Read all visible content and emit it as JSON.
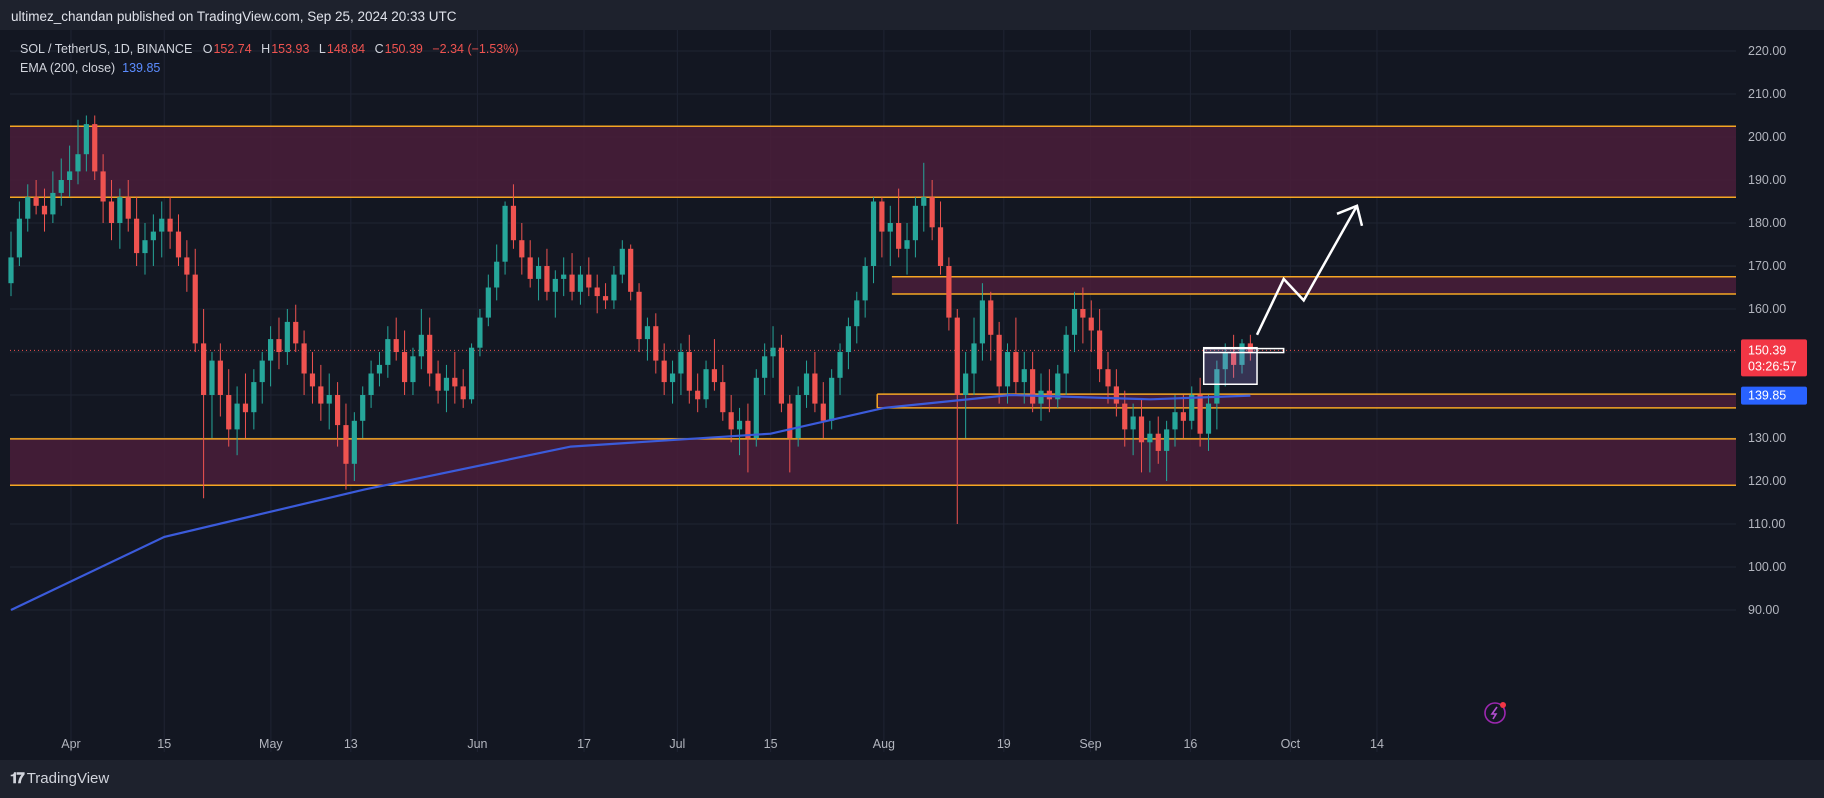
{
  "header": {
    "publisher_text": "ultimez_chandan published on TradingView.com, Sep 25, 2024 20:33 UTC"
  },
  "legend": {
    "symbol": "SOL / TetherUS, 1D, BINANCE",
    "open_key": "O",
    "open": "152.74",
    "high_key": "H",
    "high": "153.93",
    "low_key": "L",
    "low": "148.84",
    "close_key": "C",
    "close": "150.39",
    "change": "−2.34 (−1.53%)",
    "ema_label": "EMA (200, close)",
    "ema_value": "139.85"
  },
  "price_badge": {
    "price": "150.39",
    "countdown": "03:26:57"
  },
  "ema_badge": "139.85",
  "footer": {
    "brand": "TradingView",
    "logo_icon": "tradingview-logo-icon"
  },
  "colors": {
    "bg": "#131722",
    "up": "#26a69a",
    "down": "#ef5350",
    "zone_fill": "#4a1d3a",
    "zone_line": "#f5a623",
    "ema": "#3b5bdb",
    "grid": "#1f2433"
  },
  "chart_data": {
    "type": "candlestick",
    "title": "",
    "ylim": [
      88,
      228
    ],
    "y_ticks": [
      "220.00",
      "210.00",
      "200.00",
      "190.00",
      "180.00",
      "170.00",
      "160.00",
      "150.00",
      "140.00",
      "130.00",
      "120.00",
      "110.00",
      "100.00",
      "90.00"
    ],
    "x_ticks": [
      "Apr",
      "15",
      "May",
      "13",
      "Jun",
      "17",
      "Jul",
      "15",
      "Aug",
      "19",
      "Sep",
      "16",
      "Oct",
      "14"
    ],
    "candles_date_range": [
      "2024-03-23",
      "2024-09-25"
    ],
    "candles_ohlc": [
      [
        166,
        178,
        163,
        172
      ],
      [
        172,
        185,
        170,
        181
      ],
      [
        181,
        189,
        178,
        186
      ],
      [
        186,
        190,
        182,
        184
      ],
      [
        184,
        188,
        178,
        182
      ],
      [
        182,
        192,
        180,
        187
      ],
      [
        187,
        195,
        184,
        190
      ],
      [
        190,
        198,
        186,
        192
      ],
      [
        192,
        204,
        189,
        196
      ],
      [
        196,
        205,
        192,
        203
      ],
      [
        203,
        205,
        190,
        192
      ],
      [
        192,
        196,
        180,
        185
      ],
      [
        185,
        190,
        176,
        180
      ],
      [
        180,
        188,
        174,
        186
      ],
      [
        186,
        190,
        178,
        181
      ],
      [
        181,
        186,
        170,
        173
      ],
      [
        173,
        180,
        168,
        176
      ],
      [
        176,
        182,
        170,
        178
      ],
      [
        178,
        185,
        172,
        181
      ],
      [
        181,
        186,
        174,
        178
      ],
      [
        178,
        182,
        170,
        172
      ],
      [
        172,
        176,
        164,
        168
      ],
      [
        168,
        174,
        150,
        152
      ],
      [
        152,
        160,
        116,
        140
      ],
      [
        140,
        150,
        130,
        148
      ],
      [
        148,
        152,
        135,
        140
      ],
      [
        140,
        146,
        128,
        132
      ],
      [
        132,
        142,
        126,
        138
      ],
      [
        138,
        145,
        130,
        136
      ],
      [
        136,
        146,
        132,
        143
      ],
      [
        143,
        150,
        138,
        148
      ],
      [
        148,
        156,
        142,
        153
      ],
      [
        153,
        158,
        146,
        150
      ],
      [
        150,
        160,
        147,
        157
      ],
      [
        157,
        161,
        150,
        152
      ],
      [
        152,
        155,
        140,
        145
      ],
      [
        145,
        150,
        138,
        142
      ],
      [
        142,
        147,
        134,
        138
      ],
      [
        138,
        145,
        132,
        140
      ],
      [
        140,
        143,
        128,
        133
      ],
      [
        133,
        138,
        118,
        124
      ],
      [
        124,
        136,
        120,
        134
      ],
      [
        134,
        142,
        130,
        140
      ],
      [
        140,
        148,
        137,
        145
      ],
      [
        145,
        150,
        142,
        147
      ],
      [
        147,
        156,
        144,
        153
      ],
      [
        153,
        158,
        148,
        150
      ],
      [
        150,
        155,
        140,
        143
      ],
      [
        143,
        151,
        140,
        149
      ],
      [
        149,
        160,
        146,
        154
      ],
      [
        154,
        158,
        142,
        145
      ],
      [
        145,
        148,
        138,
        141
      ],
      [
        141,
        147,
        136,
        144
      ],
      [
        144,
        150,
        138,
        142
      ],
      [
        142,
        146,
        137,
        139
      ],
      [
        139,
        152,
        138,
        151
      ],
      [
        151,
        160,
        149,
        158
      ],
      [
        158,
        168,
        156,
        165
      ],
      [
        165,
        175,
        162,
        171
      ],
      [
        171,
        185,
        168,
        184
      ],
      [
        184,
        189,
        174,
        176
      ],
      [
        176,
        180,
        168,
        172
      ],
      [
        172,
        176,
        165,
        167
      ],
      [
        167,
        172,
        162,
        170
      ],
      [
        170,
        174,
        162,
        164
      ],
      [
        164,
        169,
        158,
        167
      ],
      [
        167,
        172,
        163,
        168
      ],
      [
        168,
        173,
        162,
        164
      ],
      [
        164,
        170,
        161,
        168
      ],
      [
        168,
        172,
        163,
        165
      ],
      [
        165,
        168,
        159,
        163
      ],
      [
        163,
        166,
        160,
        162
      ],
      [
        162,
        170,
        160,
        168
      ],
      [
        168,
        176,
        166,
        174
      ],
      [
        174,
        175,
        162,
        164
      ],
      [
        164,
        166,
        150,
        153
      ],
      [
        153,
        158,
        148,
        156
      ],
      [
        156,
        159,
        145,
        148
      ],
      [
        148,
        152,
        140,
        143
      ],
      [
        143,
        148,
        138,
        145
      ],
      [
        145,
        152,
        140,
        150
      ],
      [
        150,
        154,
        138,
        141
      ],
      [
        141,
        145,
        136,
        139
      ],
      [
        139,
        148,
        137,
        146
      ],
      [
        146,
        153,
        141,
        143
      ],
      [
        143,
        147,
        134,
        136
      ],
      [
        136,
        140,
        129,
        132
      ],
      [
        132,
        137,
        126,
        134
      ],
      [
        134,
        138,
        122,
        130
      ],
      [
        130,
        146,
        128,
        144
      ],
      [
        144,
        152,
        140,
        149
      ],
      [
        149,
        156,
        144,
        151
      ],
      [
        151,
        154,
        136,
        138
      ],
      [
        138,
        140,
        122,
        130
      ],
      [
        130,
        142,
        128,
        140
      ],
      [
        140,
        148,
        137,
        145
      ],
      [
        145,
        150,
        136,
        138
      ],
      [
        138,
        143,
        130,
        134
      ],
      [
        134,
        146,
        132,
        144
      ],
      [
        144,
        152,
        140,
        150
      ],
      [
        150,
        158,
        146,
        156
      ],
      [
        156,
        164,
        152,
        162
      ],
      [
        162,
        172,
        158,
        170
      ],
      [
        170,
        186,
        166,
        185
      ],
      [
        185,
        186,
        172,
        178
      ],
      [
        178,
        184,
        170,
        180
      ],
      [
        180,
        188,
        172,
        174
      ],
      [
        174,
        180,
        168,
        176
      ],
      [
        176,
        186,
        172,
        184
      ],
      [
        184,
        194,
        178,
        186
      ],
      [
        186,
        190,
        176,
        179
      ],
      [
        179,
        185,
        168,
        170
      ],
      [
        170,
        172,
        155,
        158
      ],
      [
        158,
        160,
        110,
        140
      ],
      [
        140,
        150,
        130,
        145
      ],
      [
        145,
        158,
        140,
        152
      ],
      [
        152,
        166,
        148,
        162
      ],
      [
        162,
        164,
        148,
        154
      ],
      [
        154,
        157,
        138,
        142
      ],
      [
        142,
        152,
        138,
        150
      ],
      [
        150,
        158,
        140,
        143
      ],
      [
        143,
        150,
        138,
        146
      ],
      [
        146,
        150,
        136,
        138
      ],
      [
        138,
        145,
        134,
        141
      ],
      [
        141,
        146,
        136,
        139
      ],
      [
        139,
        147,
        137,
        145
      ],
      [
        145,
        156,
        140,
        154
      ],
      [
        154,
        164,
        150,
        160
      ],
      [
        160,
        165,
        152,
        158
      ],
      [
        158,
        162,
        150,
        155
      ],
      [
        155,
        160,
        143,
        146
      ],
      [
        146,
        150,
        138,
        142
      ],
      [
        142,
        146,
        135,
        138
      ],
      [
        138,
        141,
        128,
        132
      ],
      [
        132,
        138,
        126,
        135
      ],
      [
        135,
        139,
        122,
        129
      ],
      [
        129,
        134,
        122,
        131
      ],
      [
        131,
        135,
        124,
        127
      ],
      [
        127,
        134,
        120,
        132
      ],
      [
        132,
        140,
        128,
        136
      ],
      [
        136,
        140,
        130,
        134
      ],
      [
        134,
        142,
        132,
        140
      ],
      [
        140,
        144,
        128,
        131
      ],
      [
        131,
        140,
        127,
        138
      ],
      [
        138,
        148,
        132,
        146
      ],
      [
        146,
        152,
        142,
        150
      ],
      [
        150,
        154,
        144,
        147
      ],
      [
        147,
        153,
        145,
        152
      ],
      [
        152,
        154,
        148,
        150
      ]
    ],
    "ema_200": [
      {
        "date": "2024-03-23",
        "value": 90
      },
      {
        "date": "2024-04-15",
        "value": 107
      },
      {
        "date": "2024-05-15",
        "value": 118
      },
      {
        "date": "2024-06-15",
        "value": 128
      },
      {
        "date": "2024-07-15",
        "value": 131
      },
      {
        "date": "2024-08-01",
        "value": 137
      },
      {
        "date": "2024-08-20",
        "value": 140
      },
      {
        "date": "2024-09-10",
        "value": 139
      },
      {
        "date": "2024-09-25",
        "value": 139.85
      }
    ],
    "zones": [
      {
        "low": 186,
        "high": 202.5
      },
      {
        "low": 163.5,
        "high": 167.5
      },
      {
        "low": 137,
        "high": 140.2
      },
      {
        "low": 119,
        "high": 129.8
      }
    ],
    "projection_arrow": [
      {
        "date": "2024-09-26",
        "value": 154
      },
      {
        "date": "2024-09-30",
        "value": 167
      },
      {
        "date": "2024-10-03",
        "value": 162
      },
      {
        "date": "2024-10-11",
        "value": 184
      }
    ]
  }
}
